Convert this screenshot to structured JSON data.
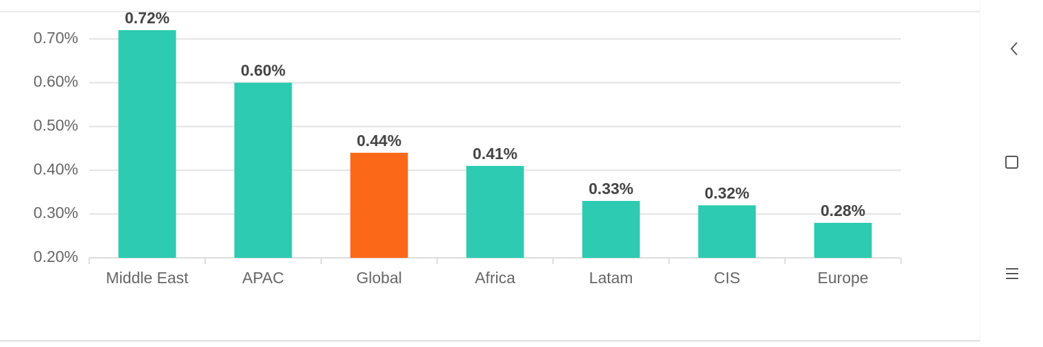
{
  "chart_data": {
    "type": "bar",
    "categories": [
      "Middle East",
      "APAC",
      "Global",
      "Africa",
      "Latam",
      "CIS",
      "Europe"
    ],
    "values": [
      0.72,
      0.6,
      0.44,
      0.41,
      0.33,
      0.32,
      0.28
    ],
    "value_labels": [
      "0.72%",
      "0.60%",
      "0.44%",
      "0.41%",
      "0.33%",
      "0.32%",
      "0.28%"
    ],
    "colors": [
      "#2dcbb1",
      "#2dcbb1",
      "#fb6818",
      "#2dcbb1",
      "#2dcbb1",
      "#2dcbb1",
      "#2dcbb1"
    ],
    "ylim": [
      0.2,
      0.72
    ],
    "yticks": [
      {
        "value": 0.2,
        "label": "0.20%"
      },
      {
        "value": 0.3,
        "label": "0.30%"
      },
      {
        "value": 0.4,
        "label": "0.40%"
      },
      {
        "value": 0.5,
        "label": "0.50%"
      },
      {
        "value": 0.6,
        "label": "0.60%"
      },
      {
        "value": 0.7,
        "label": "0.70%"
      }
    ],
    "grid": true
  }
}
